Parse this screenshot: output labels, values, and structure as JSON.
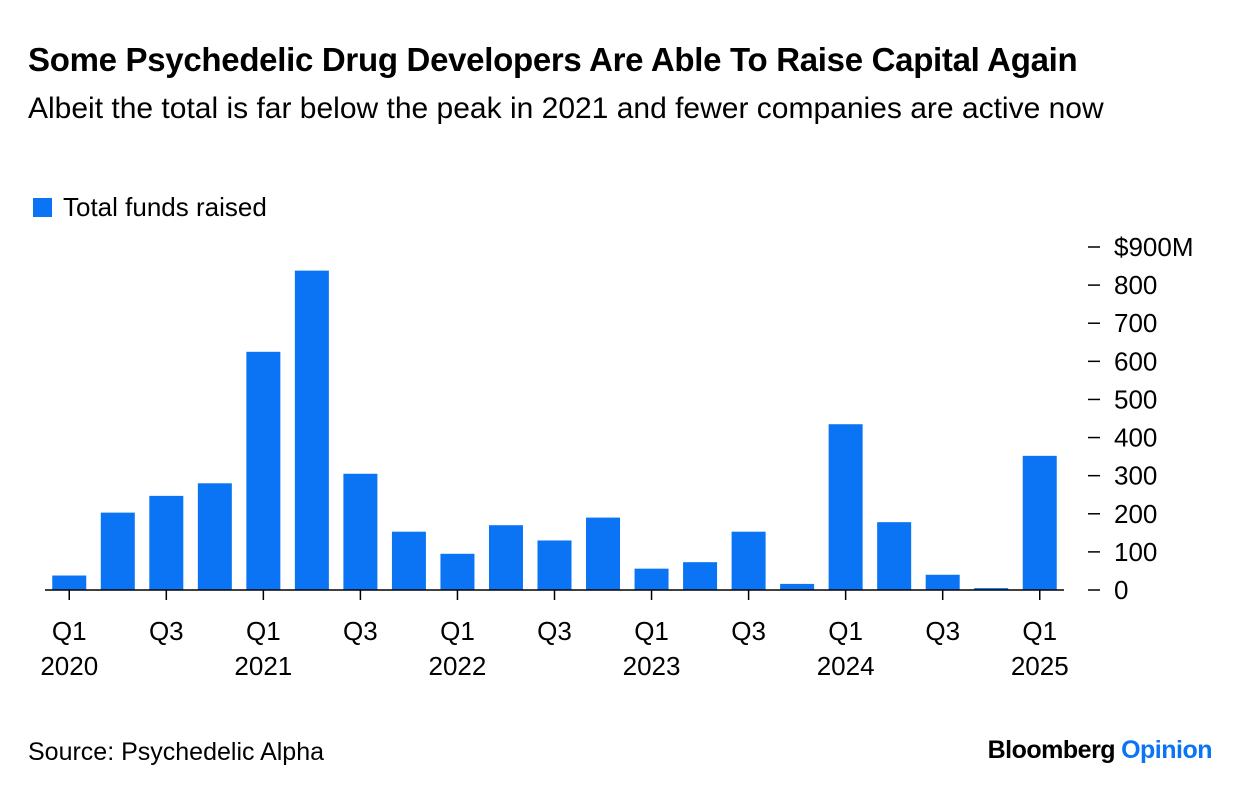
{
  "header": {
    "title": "Some Psychedelic Drug Developers Are Able To Raise Capital Again",
    "subtitle": "Albeit the total is far below the peak in 2021 and fewer companies are active now"
  },
  "footer": {
    "source": "Source: Psychedelic Alpha",
    "brand_main": "Bloomberg",
    "brand_sub": "Opinion"
  },
  "colors": {
    "bar": "#0a74f5",
    "brand_sub": "#0a74f5",
    "axis": "#000000",
    "text": "#000000"
  },
  "chart_data": {
    "type": "bar",
    "title": "Some Psychedelic Drug Developers Are Able To Raise Capital Again",
    "subtitle": "Albeit the total is far below the peak in 2021 and fewer companies are active now",
    "legend": {
      "position": "top-left",
      "entries": [
        "Total funds raised"
      ]
    },
    "categories": [
      "2020 Q1",
      "2020 Q2",
      "2020 Q3",
      "2020 Q4",
      "2021 Q1",
      "2021 Q2",
      "2021 Q3",
      "2021 Q4",
      "2022 Q1",
      "2022 Q2",
      "2022 Q3",
      "2022 Q4",
      "2023 Q1",
      "2023 Q2",
      "2023 Q3",
      "2023 Q4",
      "2024 Q1",
      "2024 Q2",
      "2024 Q3",
      "2024 Q4",
      "2025 Q1"
    ],
    "series": [
      {
        "name": "Total funds raised",
        "values": [
          38,
          203,
          247,
          280,
          625,
          838,
          305,
          153,
          95,
          170,
          130,
          190,
          56,
          73,
          153,
          16,
          435,
          178,
          40,
          5,
          352
        ]
      }
    ],
    "y_axis": {
      "position": "right",
      "ylim": [
        0,
        900
      ],
      "ticks": [
        0,
        100,
        200,
        300,
        400,
        500,
        600,
        700,
        800,
        900
      ],
      "tick_labels": [
        "0",
        "100",
        "200",
        "300",
        "400",
        "500",
        "600",
        "700",
        "800",
        "$900M"
      ]
    },
    "x_axis": {
      "tick_labels": [
        {
          "category_index": 0,
          "line1": "Q1",
          "line2": "2020"
        },
        {
          "category_index": 2,
          "line1": "Q3",
          "line2": ""
        },
        {
          "category_index": 4,
          "line1": "Q1",
          "line2": "2021"
        },
        {
          "category_index": 6,
          "line1": "Q3",
          "line2": ""
        },
        {
          "category_index": 8,
          "line1": "Q1",
          "line2": "2022"
        },
        {
          "category_index": 10,
          "line1": "Q3",
          "line2": ""
        },
        {
          "category_index": 12,
          "line1": "Q1",
          "line2": "2023"
        },
        {
          "category_index": 14,
          "line1": "Q3",
          "line2": ""
        },
        {
          "category_index": 16,
          "line1": "Q1",
          "line2": "2024"
        },
        {
          "category_index": 18,
          "line1": "Q3",
          "line2": ""
        },
        {
          "category_index": 20,
          "line1": "Q1",
          "line2": "2025"
        }
      ]
    },
    "grid": false
  }
}
